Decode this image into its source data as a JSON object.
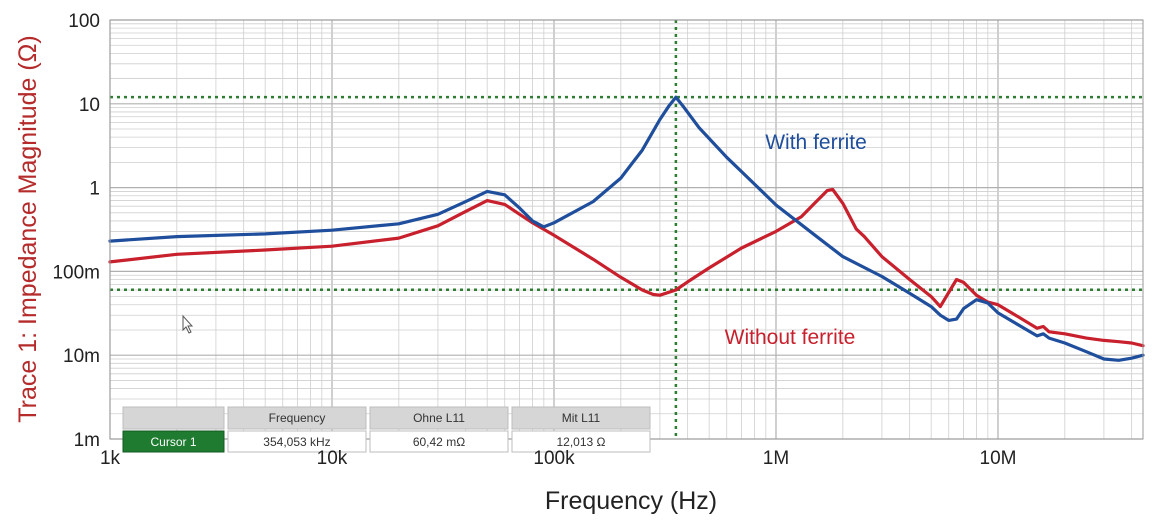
{
  "chart_data": {
    "type": "line",
    "xlabel": "Frequency (Hz)",
    "ylabel": "Trace 1: Impedance Magnitude (Ω)",
    "x_scale": "log",
    "y_scale": "log",
    "xlim": [
      1000,
      45000000
    ],
    "ylim": [
      0.001,
      100
    ],
    "x_ticks": [
      {
        "value": 1000,
        "label": "1k"
      },
      {
        "value": 10000,
        "label": "10k"
      },
      {
        "value": 100000,
        "label": "100k"
      },
      {
        "value": 1000000,
        "label": "1M"
      },
      {
        "value": 10000000,
        "label": "10M"
      }
    ],
    "y_ticks": [
      {
        "value": 100,
        "label": "100"
      },
      {
        "value": 10,
        "label": "10"
      },
      {
        "value": 1,
        "label": "1"
      },
      {
        "value": 0.1,
        "label": "100m"
      },
      {
        "value": 0.01,
        "label": "10m"
      },
      {
        "value": 0.001,
        "label": "1m"
      }
    ],
    "grid": true,
    "series": [
      {
        "name": "With ferrite",
        "color": "#1f4e9c",
        "x": [
          1000,
          2000,
          5000,
          10000,
          20000,
          30000,
          40000,
          50000,
          60000,
          70000,
          80000,
          90000,
          100000,
          150000,
          200000,
          250000,
          300000,
          330000,
          354000,
          380000,
          450000,
          600000,
          800000,
          1000000,
          1500000,
          2000000,
          3000000,
          4000000,
          5000000,
          5500000,
          6000000,
          6500000,
          7000000,
          8000000,
          9000000,
          10000000,
          12000000,
          15000000,
          16000000,
          17000000,
          20000000,
          25000000,
          30000000,
          35000000,
          40000000,
          45000000
        ],
        "y": [
          0.23,
          0.26,
          0.28,
          0.31,
          0.37,
          0.48,
          0.68,
          0.9,
          0.82,
          0.57,
          0.4,
          0.34,
          0.38,
          0.68,
          1.3,
          2.8,
          6.5,
          9.5,
          12.0,
          9.5,
          5.2,
          2.3,
          1.1,
          0.62,
          0.27,
          0.15,
          0.087,
          0.055,
          0.038,
          0.03,
          0.026,
          0.027,
          0.036,
          0.046,
          0.042,
          0.032,
          0.024,
          0.017,
          0.018,
          0.016,
          0.014,
          0.011,
          0.009,
          0.0087,
          0.0092,
          0.01
        ]
      },
      {
        "name": "Without ferrite",
        "color": "#c8202c",
        "x": [
          1000,
          2000,
          5000,
          10000,
          20000,
          30000,
          40000,
          50000,
          60000,
          70000,
          80000,
          100000,
          150000,
          200000,
          250000,
          280000,
          300000,
          354000,
          400000,
          500000,
          700000,
          1000000,
          1300000,
          1500000,
          1700000,
          1800000,
          2000000,
          2300000,
          2500000,
          3000000,
          4000000,
          5000000,
          5500000,
          6000000,
          6500000,
          7000000,
          8000000,
          9000000,
          10000000,
          12000000,
          15000000,
          16000000,
          17000000,
          20000000,
          25000000,
          30000000,
          35000000,
          40000000,
          45000000
        ],
        "y": [
          0.13,
          0.16,
          0.18,
          0.2,
          0.25,
          0.35,
          0.52,
          0.7,
          0.63,
          0.48,
          0.38,
          0.27,
          0.14,
          0.085,
          0.06,
          0.053,
          0.052,
          0.06,
          0.075,
          0.11,
          0.19,
          0.3,
          0.45,
          0.66,
          0.92,
          0.95,
          0.65,
          0.32,
          0.26,
          0.15,
          0.08,
          0.05,
          0.038,
          0.056,
          0.08,
          0.074,
          0.052,
          0.043,
          0.04,
          0.03,
          0.021,
          0.022,
          0.019,
          0.018,
          0.016,
          0.015,
          0.0145,
          0.014,
          0.013
        ]
      }
    ],
    "cursor": {
      "x_freq": 354053,
      "y_with": 12.013,
      "y_without": 0.06042
    },
    "annotations": [
      {
        "text": "With ferrite",
        "color": "#1f4e9c"
      },
      {
        "text": "Without ferrite",
        "color": "#c8202c"
      }
    ],
    "cursor_table": {
      "headers": [
        "Frequency",
        "Ohne L11",
        "Mit L11"
      ],
      "row_label": "Cursor 1",
      "values": [
        "354,053 kHz",
        "60,42 mΩ",
        "12,013 Ω"
      ]
    },
    "colors": {
      "cursor": "#2e7d32",
      "grid": "#cfcfcf",
      "ylabel": "#b52a2a",
      "row_label_bg": "#1e7b2f"
    }
  }
}
